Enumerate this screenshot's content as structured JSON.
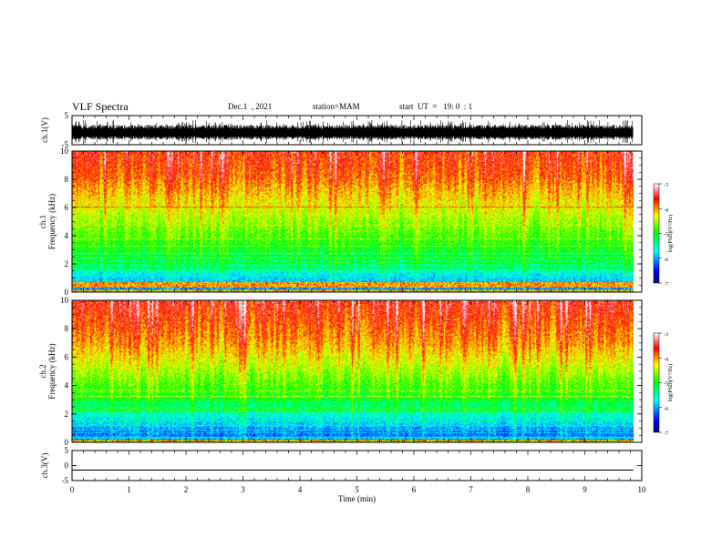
{
  "header": {
    "title": "VLF Spectra",
    "date": "Dec.1  , 2021",
    "station": "station=MAM",
    "start": "start  UT  =   19: 0  : 1"
  },
  "chart_data": [
    {
      "type": "line",
      "panel": "waveform-ch1",
      "ylabel": "ch.1(V)",
      "ylim": [
        -5,
        5
      ],
      "yticks": [
        5,
        -5
      ],
      "x_range_min": [
        0,
        9.85
      ],
      "signal": "dense noise, amplitude approx 2 to 4 V, centered near -1"
    },
    {
      "type": "heatmap",
      "panel": "spectrogram-ch1",
      "ylabel_lines": [
        "ch.1",
        "Frequency  (kHz)"
      ],
      "ylim": [
        0,
        10
      ],
      "yticks": [
        0,
        2,
        4,
        6,
        8,
        10
      ],
      "x_range_min": [
        0,
        9.85
      ],
      "colorbar": {
        "label": "log(PSD)(V²/Hz)",
        "range": [
          -7,
          -3
        ],
        "ticks": [
          -3,
          -4,
          -5,
          -6,
          -7
        ]
      },
      "structure": "red/orange above 8 kHz, yellow-green 4-8 kHz, cyan 1.5-4 kHz, blue band below 1.5 kHz, strong horizontal line near 0.5 kHz"
    },
    {
      "type": "heatmap",
      "panel": "spectrogram-ch2",
      "ylabel_lines": [
        "ch.2",
        "Frequency  (kHz)"
      ],
      "ylim": [
        0,
        10
      ],
      "yticks": [
        0,
        2,
        4,
        6,
        8,
        10
      ],
      "x_range_min": [
        0,
        9.85
      ],
      "colorbar": {
        "label": "log(PSD)(V²/Hz)",
        "range": [
          -7,
          -3
        ],
        "ticks": [
          -3,
          -4,
          -5,
          -6,
          -7
        ]
      },
      "structure": "red/orange above 7 kHz, yellow-green 3-7 kHz, cyan and deep blue below 3 kHz"
    },
    {
      "type": "line",
      "panel": "waveform-ch3",
      "ylabel": "ch.3(V)",
      "ylim": [
        -5,
        5
      ],
      "yticks": [
        5,
        0,
        -5
      ],
      "series": [
        {
          "x": [
            0,
            9.85
          ],
          "y": [
            -1.5,
            -1.5
          ]
        }
      ]
    }
  ],
  "xaxis": {
    "label": "Time  (min)",
    "ticks": [
      0,
      1,
      2,
      3,
      4,
      5,
      6,
      7,
      8,
      9,
      10
    ],
    "range": [
      0,
      10
    ]
  },
  "colors": {
    "colormap": [
      "#000080",
      "#0000ff",
      "#00ffff",
      "#00ff00",
      "#ffff00",
      "#ff0000",
      "#ffffff"
    ]
  }
}
